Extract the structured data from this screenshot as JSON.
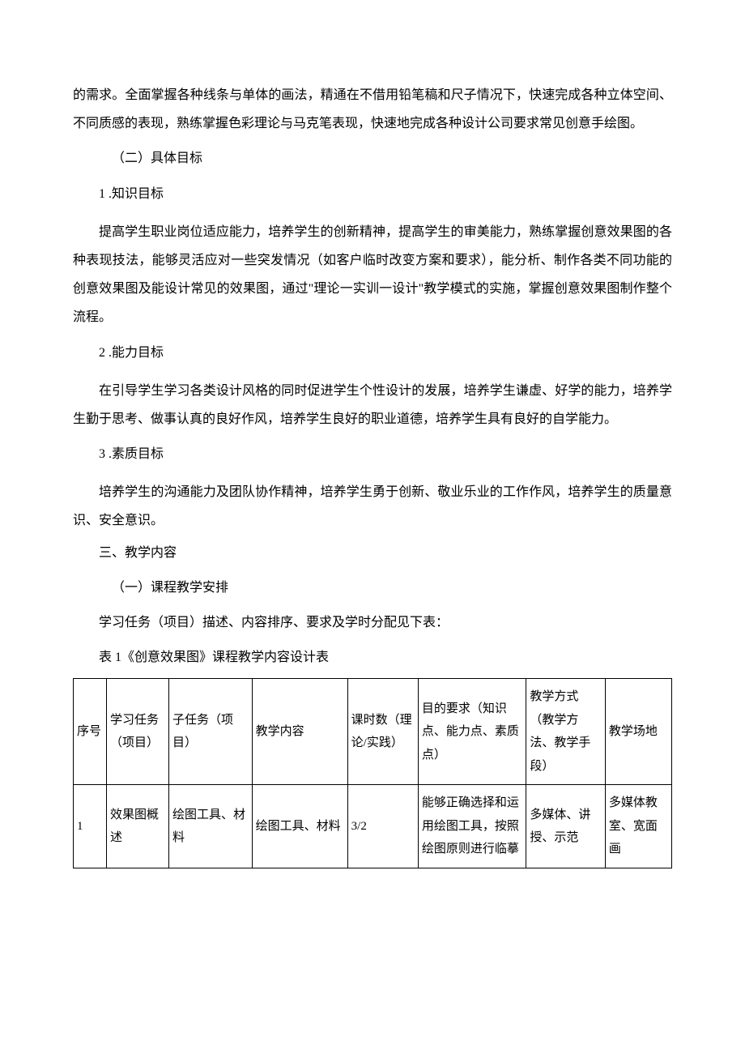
{
  "paragraphs": {
    "p1": "的需求。全面掌握各种线条与单体的画法，精通在不借用铅笔稿和尺子情况下，快速完成各种立体空间、不同质感的表现，熟练掌握色彩理论与马克笔表现，快速地完成各种设计公司要求常见创意手绘图。",
    "h2_1": "（二）具体目标",
    "h3_1": "1 .知识目标",
    "p2": "提高学生职业岗位适应能力，培养学生的创新精神，提高学生的审美能力，熟练掌握创意效果图的各种表现技法，能够灵活应对一些突发情况（如客户临时改变方案和要求），能分析、制作各类不同功能的创意效果图及能设计常见的效果图，通过\"理论一实训一设计\"教学模式的实施，掌握创意效果图制作整个流程。",
    "h3_2": "2 .能力目标",
    "p3": "在引导学生学习各类设计风格的同时促进学生个性设计的发展，培养学生谦虚、好学的能力，培养学生勤于思考、做事认真的良好作风，培养学生良好的职业道德，培养学生具有良好的自学能力。",
    "h3_3": "3 .素质目标",
    "p4": "培养学生的沟通能力及团队协作精神，培养学生勇于创新、敬业乐业的工作作风，培养学生的质量意识、安全意识。",
    "section3": "三、教学内容",
    "h2_2": "（一）课程教学安排",
    "p5": "学习任务（项目）描述、内容排序、要求及学时分配见下表：",
    "table_caption": "表 1《创意效果图》课程教学内容设计表"
  },
  "table": {
    "header": {
      "seq": "序号",
      "task": "学习任务（项目）",
      "subtask": "子任务（项目）",
      "content": "教学内容",
      "hours": "课时数（理论/实践）",
      "goal": "目的要求（知识点、能力点、素质点）",
      "method": "教学方式（教学方法、教学手段）",
      "place": "教学场地"
    },
    "rows": [
      {
        "seq": "1",
        "task": "效果图概述",
        "subtask": "绘图工具、材料",
        "content": "绘图工具、材料",
        "hours": "3/2",
        "goal": "能够正确选择和运用绘图工具，按照绘图原则进行临摹",
        "method": "多媒体、讲授、示范",
        "place": "多媒体教室、宽面画"
      }
    ]
  }
}
